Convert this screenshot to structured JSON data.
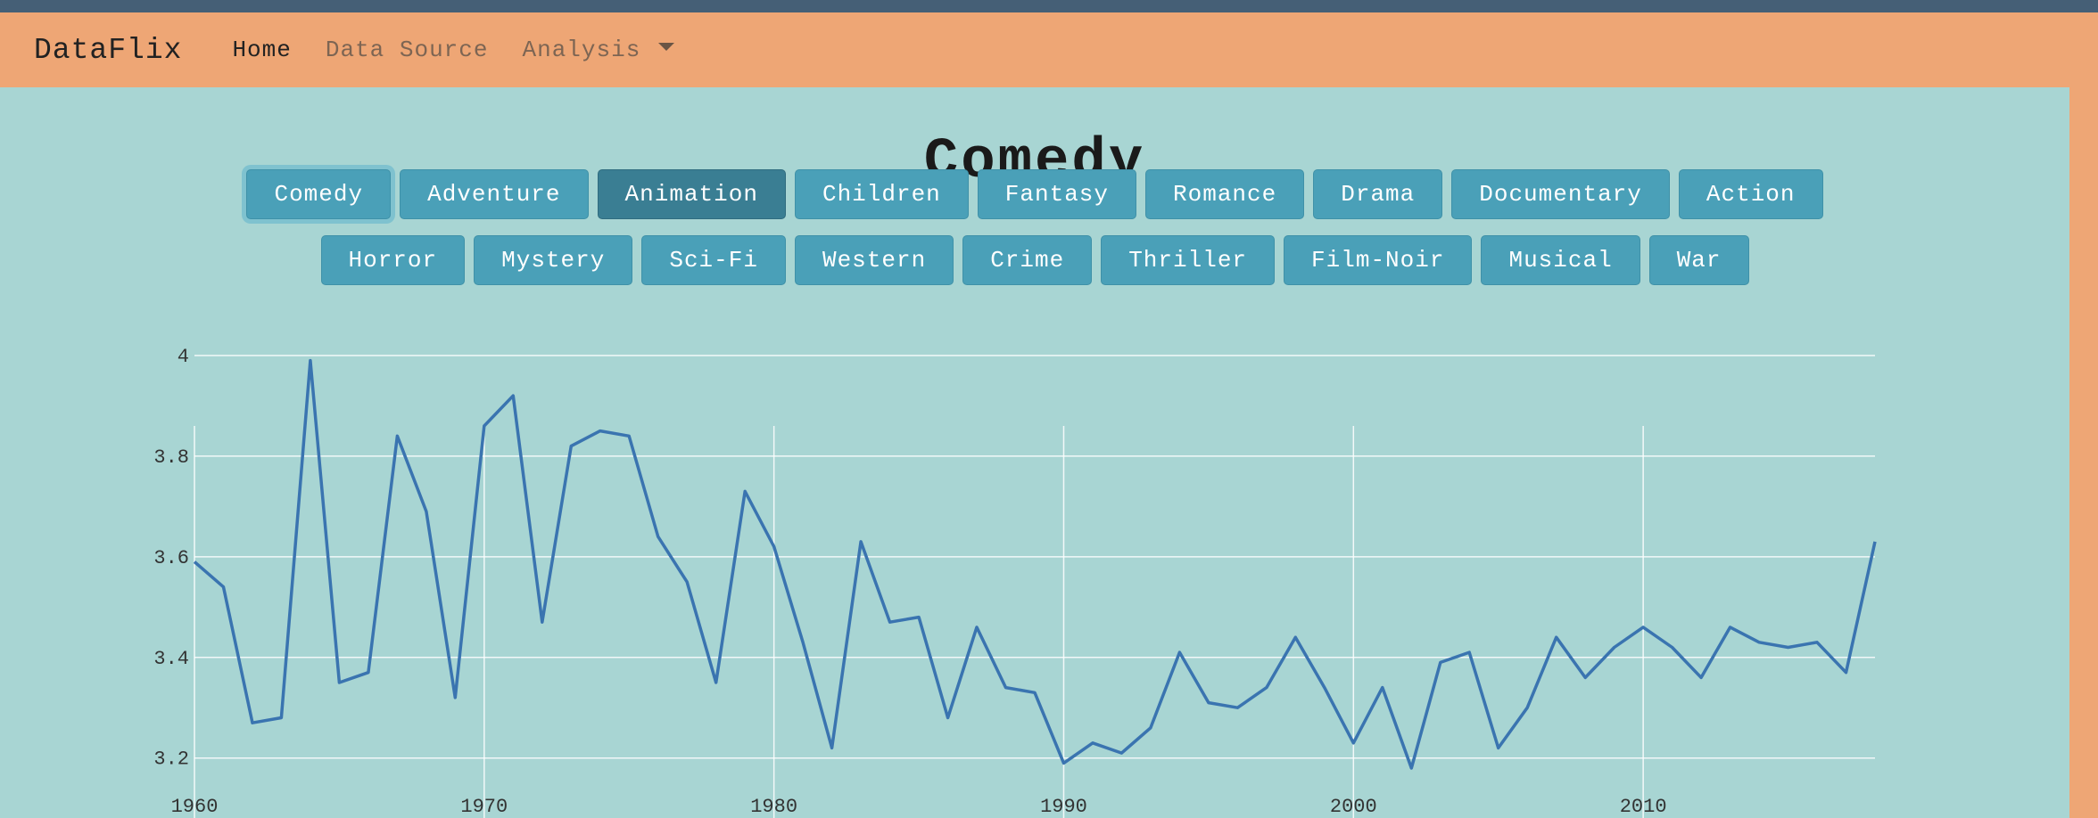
{
  "navbar": {
    "brand": "DataFlix",
    "home": "Home",
    "data_source": "Data Source",
    "analysis": "Analysis"
  },
  "page_title": "Comedy",
  "genres_row1": [
    "Comedy",
    "Adventure",
    "Animation",
    "Children",
    "Fantasy",
    "Romance",
    "Drama",
    "Documentary",
    "Action"
  ],
  "genres_row2": [
    "Horror",
    "Mystery",
    "Sci-Fi",
    "Western",
    "Crime",
    "Thriller",
    "Film-Noir",
    "Musical",
    "War"
  ],
  "colors": {
    "header_bg": "#eea675",
    "top_stripe": "#455f76",
    "content_bg": "#a8d5d3",
    "button": "#4aa0b8",
    "button_active": "#3a7e93",
    "line": "#3a74b0"
  },
  "chart_data": {
    "type": "line",
    "title": "",
    "xlabel": "",
    "ylabel": "",
    "xlim": [
      1960,
      2018
    ],
    "ylim": [
      3.18,
      4.03
    ],
    "x_ticks": [
      1960,
      1970,
      1980,
      1990,
      2000,
      2010
    ],
    "y_ticks": [
      3.2,
      3.4,
      3.6,
      3.8,
      4
    ],
    "grid": true,
    "series": [
      {
        "x": [
          1960,
          1961,
          1962,
          1963,
          1964,
          1965,
          1966,
          1967,
          1968,
          1969,
          1970,
          1971,
          1972,
          1973,
          1974,
          1975,
          1976,
          1977,
          1978,
          1979,
          1980,
          1981,
          1982,
          1983,
          1984,
          1985,
          1986,
          1987,
          1988,
          1989,
          1990,
          1991,
          1992,
          1993,
          1994,
          1995,
          1996,
          1997,
          1998,
          1999,
          2000,
          2001,
          2002,
          2003,
          2004,
          2005,
          2006,
          2007,
          2008,
          2009,
          2010,
          2011,
          2012,
          2013,
          2014,
          2015,
          2016,
          2017,
          2018
        ],
        "y": [
          3.59,
          3.54,
          3.27,
          3.28,
          3.99,
          3.35,
          3.37,
          3.84,
          3.69,
          3.32,
          3.86,
          3.92,
          3.47,
          3.82,
          3.85,
          3.84,
          3.64,
          3.55,
          3.35,
          3.73,
          3.62,
          3.43,
          3.22,
          3.63,
          3.47,
          3.48,
          3.28,
          3.46,
          3.34,
          3.33,
          3.19,
          3.23,
          3.21,
          3.26,
          3.41,
          3.31,
          3.3,
          3.34,
          3.44,
          3.34,
          3.23,
          3.34,
          3.18,
          3.39,
          3.41,
          3.22,
          3.3,
          3.44,
          3.36,
          3.42,
          3.46,
          3.42,
          3.36,
          3.46,
          3.43,
          3.42,
          3.43,
          3.37,
          3.63
        ]
      }
    ]
  }
}
